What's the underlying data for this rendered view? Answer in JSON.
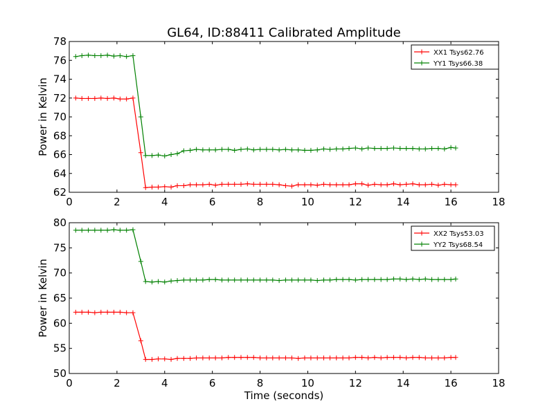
{
  "chart_data": {
    "title": "GL64, ID:88411 Calibrated Amplitude",
    "xlabel": "Time (seconds)",
    "x_ticks": [
      "0",
      "2",
      "4",
      "6",
      "8",
      "10",
      "12",
      "14",
      "16",
      "18"
    ],
    "colors": {
      "red": "#ff0000",
      "green": "#008000"
    },
    "x": [
      0.27,
      0.53,
      0.8,
      1.07,
      1.33,
      1.6,
      1.87,
      2.13,
      2.4,
      2.67,
      3.0,
      3.2,
      3.47,
      3.73,
      4.0,
      4.27,
      4.53,
      4.8,
      5.07,
      5.33,
      5.6,
      5.87,
      6.13,
      6.4,
      6.67,
      6.93,
      7.2,
      7.47,
      7.73,
      8.0,
      8.27,
      8.53,
      8.8,
      9.07,
      9.33,
      9.6,
      9.87,
      10.13,
      10.4,
      10.67,
      10.93,
      11.2,
      11.47,
      11.73,
      12.0,
      12.27,
      12.53,
      12.8,
      13.07,
      13.33,
      13.6,
      13.87,
      14.13,
      14.4,
      14.67,
      14.93,
      15.2,
      15.47,
      15.73,
      16.0,
      16.2
    ],
    "panels": [
      {
        "ylabel": "Power in Kelvin",
        "ylim": [
          62,
          78
        ],
        "y_ticks": [
          "62",
          "64",
          "66",
          "68",
          "70",
          "72",
          "74",
          "76",
          "78"
        ],
        "series": [
          {
            "name": "XX1 Tsys62.76",
            "color": "#ff0000",
            "values": [
              72.0,
              71.95,
              71.95,
              71.95,
              72.0,
              71.95,
              72.0,
              71.9,
              71.9,
              72.0,
              66.2,
              62.5,
              62.55,
              62.55,
              62.6,
              62.55,
              62.7,
              62.7,
              62.8,
              62.8,
              62.8,
              62.85,
              62.75,
              62.85,
              62.85,
              62.85,
              62.85,
              62.9,
              62.85,
              62.85,
              62.85,
              62.85,
              62.8,
              62.7,
              62.65,
              62.8,
              62.8,
              62.8,
              62.75,
              62.85,
              62.8,
              62.8,
              62.8,
              62.8,
              62.9,
              62.9,
              62.75,
              62.85,
              62.8,
              62.8,
              62.9,
              62.8,
              62.85,
              62.9,
              62.8,
              62.8,
              62.85,
              62.75,
              62.85,
              62.8,
              62.8
            ]
          },
          {
            "name": "YY1 Tsys66.38",
            "color": "#008000",
            "values": [
              76.4,
              76.5,
              76.55,
              76.5,
              76.5,
              76.55,
              76.45,
              76.5,
              76.4,
              76.5,
              70.0,
              65.9,
              65.9,
              65.95,
              65.85,
              66.0,
              66.1,
              66.4,
              66.45,
              66.55,
              66.5,
              66.5,
              66.5,
              66.55,
              66.55,
              66.45,
              66.55,
              66.6,
              66.5,
              66.55,
              66.55,
              66.55,
              66.5,
              66.55,
              66.5,
              66.5,
              66.45,
              66.45,
              66.5,
              66.6,
              66.55,
              66.6,
              66.6,
              66.65,
              66.7,
              66.6,
              66.7,
              66.65,
              66.65,
              66.65,
              66.7,
              66.65,
              66.65,
              66.65,
              66.6,
              66.6,
              66.65,
              66.65,
              66.6,
              66.75,
              66.7
            ]
          }
        ]
      },
      {
        "ylabel": "Power in Kelvin",
        "ylim": [
          50,
          80
        ],
        "y_ticks": [
          "50",
          "55",
          "60",
          "65",
          "70",
          "75",
          "80"
        ],
        "series": [
          {
            "name": "XX2 Tsys53.03",
            "color": "#ff0000",
            "values": [
              62.2,
              62.2,
              62.2,
              62.1,
              62.2,
              62.2,
              62.2,
              62.2,
              62.1,
              62.1,
              56.5,
              52.8,
              52.8,
              52.9,
              52.9,
              52.8,
              53.0,
              53.0,
              53.0,
              53.1,
              53.1,
              53.1,
              53.1,
              53.1,
              53.2,
              53.2,
              53.2,
              53.2,
              53.2,
              53.1,
              53.1,
              53.1,
              53.1,
              53.1,
              53.1,
              53.0,
              53.1,
              53.1,
              53.1,
              53.1,
              53.1,
              53.1,
              53.1,
              53.1,
              53.2,
              53.2,
              53.1,
              53.2,
              53.1,
              53.2,
              53.2,
              53.2,
              53.1,
              53.2,
              53.2,
              53.1,
              53.1,
              53.1,
              53.1,
              53.2,
              53.2
            ]
          },
          {
            "name": "YY2 Tsys68.54",
            "color": "#008000",
            "values": [
              78.5,
              78.5,
              78.5,
              78.5,
              78.5,
              78.5,
              78.6,
              78.5,
              78.5,
              78.6,
              72.3,
              68.3,
              68.2,
              68.3,
              68.2,
              68.4,
              68.5,
              68.6,
              68.6,
              68.6,
              68.6,
              68.7,
              68.7,
              68.6,
              68.6,
              68.6,
              68.6,
              68.6,
              68.6,
              68.6,
              68.6,
              68.6,
              68.5,
              68.6,
              68.6,
              68.6,
              68.6,
              68.6,
              68.5,
              68.6,
              68.6,
              68.7,
              68.7,
              68.7,
              68.6,
              68.7,
              68.7,
              68.7,
              68.7,
              68.7,
              68.8,
              68.8,
              68.7,
              68.8,
              68.7,
              68.8,
              68.7,
              68.7,
              68.7,
              68.7,
              68.8
            ]
          }
        ]
      }
    ]
  }
}
